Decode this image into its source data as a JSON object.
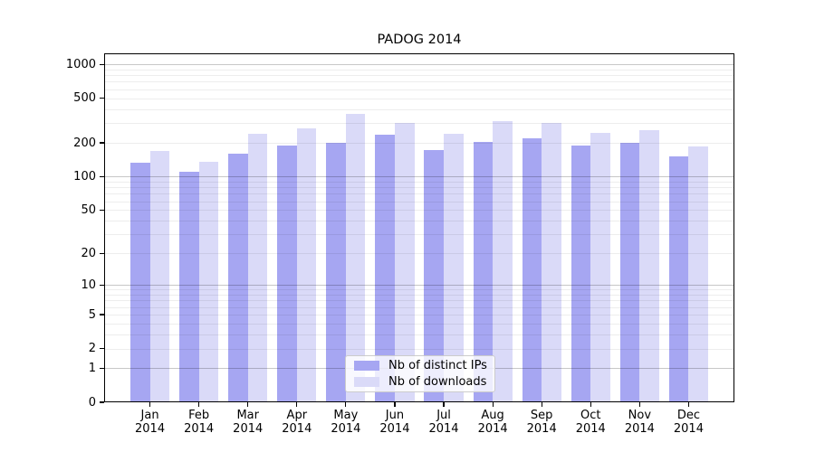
{
  "title": "PADOG 2014",
  "chart_data": {
    "type": "bar",
    "title": "PADOG 2014",
    "x_categories": [
      "Jan",
      "Feb",
      "Mar",
      "Apr",
      "May",
      "Jun",
      "Jul",
      "Aug",
      "Sep",
      "Oct",
      "Nov",
      "Dec"
    ],
    "x_year": "2014",
    "y_scale": "log1p",
    "y_ticks": [
      1000,
      500,
      200,
      100,
      50,
      20,
      10,
      5,
      2,
      1,
      0
    ],
    "ylim": [
      0,
      1250
    ],
    "grid": "on",
    "legend_position": "inside-bottom-center",
    "series": [
      {
        "name": "Nb of distinct IPs",
        "color": "#a6a6f2",
        "values": [
          132,
          110,
          160,
          188,
          200,
          235,
          172,
          205,
          220,
          190,
          200,
          152
        ]
      },
      {
        "name": "Nb of downloads",
        "color": "#dadaf8",
        "values": [
          168,
          135,
          240,
          268,
          365,
          300,
          240,
          312,
          300,
          245,
          258,
          185
        ]
      }
    ]
  }
}
